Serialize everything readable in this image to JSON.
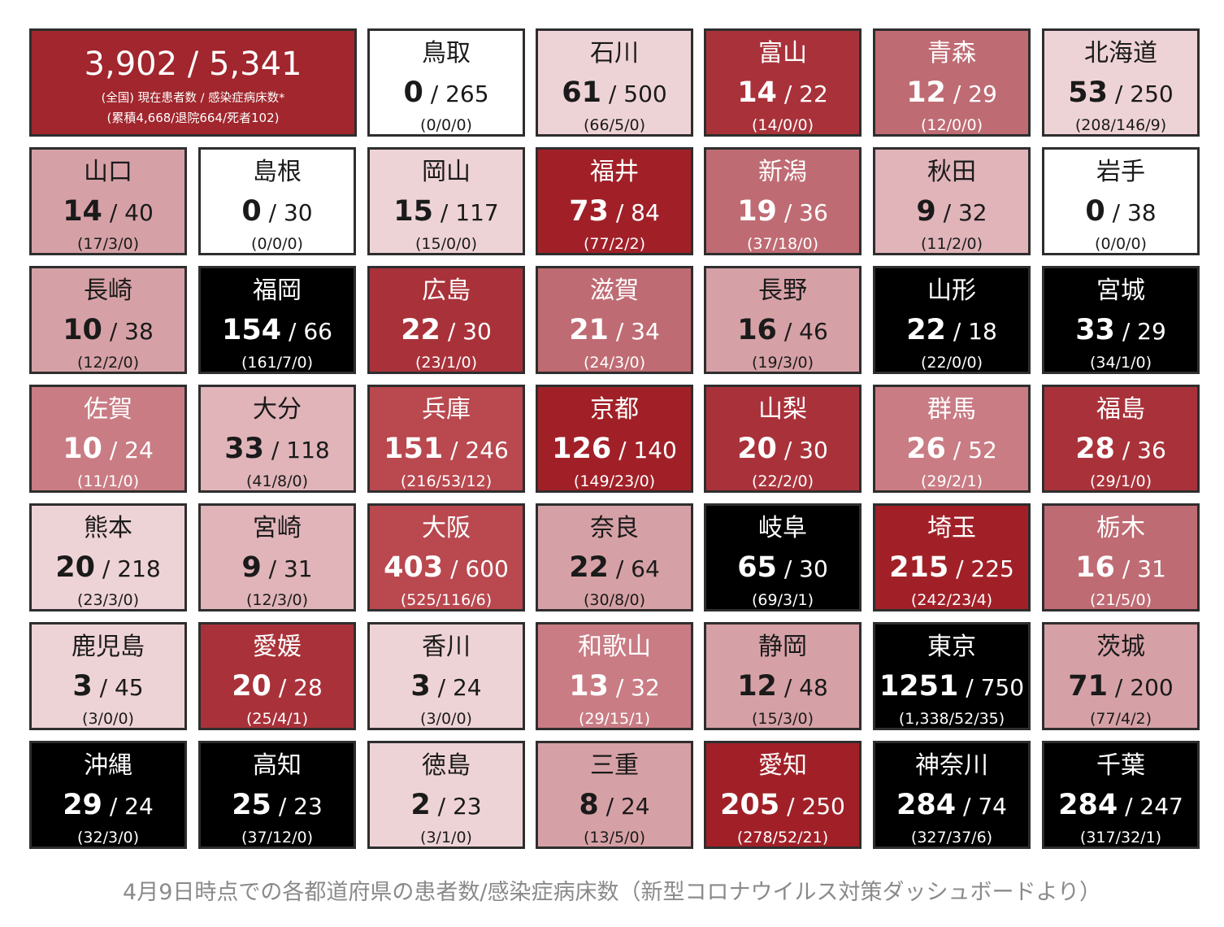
{
  "chart_data": {
    "type": "table",
    "national": {
      "headline": "3,902 / 5,341",
      "label": "(全国) 現在患者数 / 感染症病床数*",
      "cumulative": "(累積4,668/退院664/死者102)"
    },
    "tiles": [
      {
        "name": "鳥取",
        "current": 0,
        "capacity": 265,
        "breakdown": "(0/0/0)",
        "level": "white"
      },
      {
        "name": "石川",
        "current": 61,
        "capacity": 500,
        "breakdown": "(66/5/0)",
        "level": "pale"
      },
      {
        "name": "富山",
        "current": 14,
        "capacity": 22,
        "breakdown": "(14/0/0)",
        "level": "dark"
      },
      {
        "name": "青森",
        "current": 12,
        "capacity": 29,
        "breakdown": "(12/0/0)",
        "level": "mid"
      },
      {
        "name": "北海道",
        "current": 53,
        "capacity": 250,
        "breakdown": "(208/146/9)",
        "level": "pale"
      },
      {
        "name": "山口",
        "current": 14,
        "capacity": 40,
        "breakdown": "(17/3/0)",
        "level": "light"
      },
      {
        "name": "島根",
        "current": 0,
        "capacity": 30,
        "breakdown": "(0/0/0)",
        "level": "white"
      },
      {
        "name": "岡山",
        "current": 15,
        "capacity": 117,
        "breakdown": "(15/0/0)",
        "level": "pale"
      },
      {
        "name": "福井",
        "current": 73,
        "capacity": 84,
        "breakdown": "(77/2/2)",
        "level": "deep"
      },
      {
        "name": "新潟",
        "current": 19,
        "capacity": 36,
        "breakdown": "(37/18/0)",
        "level": "mid"
      },
      {
        "name": "秋田",
        "current": 9,
        "capacity": 32,
        "breakdown": "(11/2/0)",
        "level": "light2"
      },
      {
        "name": "岩手",
        "current": 0,
        "capacity": 38,
        "breakdown": "(0/0/0)",
        "level": "white"
      },
      {
        "name": "長崎",
        "current": 10,
        "capacity": 38,
        "breakdown": "(12/2/0)",
        "level": "light"
      },
      {
        "name": "福岡",
        "current": 154,
        "capacity": 66,
        "breakdown": "(161/7/0)",
        "level": "black"
      },
      {
        "name": "広島",
        "current": 22,
        "capacity": 30,
        "breakdown": "(23/1/0)",
        "level": "dark"
      },
      {
        "name": "滋賀",
        "current": 21,
        "capacity": 34,
        "breakdown": "(24/3/0)",
        "level": "mid"
      },
      {
        "name": "長野",
        "current": 16,
        "capacity": 46,
        "breakdown": "(19/3/0)",
        "level": "light"
      },
      {
        "name": "山形",
        "current": 22,
        "capacity": 18,
        "breakdown": "(22/0/0)",
        "level": "black"
      },
      {
        "name": "宮城",
        "current": 33,
        "capacity": 29,
        "breakdown": "(34/1/0)",
        "level": "black"
      },
      {
        "name": "佐賀",
        "current": 10,
        "capacity": 24,
        "breakdown": "(11/1/0)",
        "level": "mid2"
      },
      {
        "name": "大分",
        "current": 33,
        "capacity": 118,
        "breakdown": "(41/8/0)",
        "level": "light2"
      },
      {
        "name": "兵庫",
        "current": 151,
        "capacity": 246,
        "breakdown": "(216/53/12)",
        "level": "mid3"
      },
      {
        "name": "京都",
        "current": 126,
        "capacity": 140,
        "breakdown": "(149/23/0)",
        "level": "deep"
      },
      {
        "name": "山梨",
        "current": 20,
        "capacity": 30,
        "breakdown": "(22/2/0)",
        "level": "dark"
      },
      {
        "name": "群馬",
        "current": 26,
        "capacity": 52,
        "breakdown": "(29/2/1)",
        "level": "mid2"
      },
      {
        "name": "福島",
        "current": 28,
        "capacity": 36,
        "breakdown": "(29/1/0)",
        "level": "dark"
      },
      {
        "name": "熊本",
        "current": 20,
        "capacity": 218,
        "breakdown": "(23/3/0)",
        "level": "pale"
      },
      {
        "name": "宮崎",
        "current": 9,
        "capacity": 31,
        "breakdown": "(12/3/0)",
        "level": "light2"
      },
      {
        "name": "大阪",
        "current": 403,
        "capacity": 600,
        "breakdown": "(525/116/6)",
        "level": "mid3"
      },
      {
        "name": "奈良",
        "current": 22,
        "capacity": 64,
        "breakdown": "(30/8/0)",
        "level": "light"
      },
      {
        "name": "岐阜",
        "current": 65,
        "capacity": 30,
        "breakdown": "(69/3/1)",
        "level": "black"
      },
      {
        "name": "埼玉",
        "current": 215,
        "capacity": 225,
        "breakdown": "(242/23/4)",
        "level": "deep"
      },
      {
        "name": "栃木",
        "current": 16,
        "capacity": 31,
        "breakdown": "(21/5/0)",
        "level": "mid"
      },
      {
        "name": "鹿児島",
        "current": 3,
        "capacity": 45,
        "breakdown": "(3/0/0)",
        "level": "pale"
      },
      {
        "name": "愛媛",
        "current": 20,
        "capacity": 28,
        "breakdown": "(25/4/1)",
        "level": "dark"
      },
      {
        "name": "香川",
        "current": 3,
        "capacity": 24,
        "breakdown": "(3/0/0)",
        "level": "pale"
      },
      {
        "name": "和歌山",
        "current": 13,
        "capacity": 32,
        "breakdown": "(29/15/1)",
        "level": "mid2"
      },
      {
        "name": "静岡",
        "current": 12,
        "capacity": 48,
        "breakdown": "(15/3/0)",
        "level": "light"
      },
      {
        "name": "東京",
        "current": 1251,
        "capacity": 750,
        "breakdown": "(1,338/52/35)",
        "level": "black"
      },
      {
        "name": "茨城",
        "current": 71,
        "capacity": 200,
        "breakdown": "(77/4/2)",
        "level": "light"
      },
      {
        "name": "沖縄",
        "current": 29,
        "capacity": 24,
        "breakdown": "(32/3/0)",
        "level": "black"
      },
      {
        "name": "高知",
        "current": 25,
        "capacity": 23,
        "breakdown": "(37/12/0)",
        "level": "black"
      },
      {
        "name": "徳島",
        "current": 2,
        "capacity": 23,
        "breakdown": "(3/1/0)",
        "level": "pale"
      },
      {
        "name": "三重",
        "current": 8,
        "capacity": 24,
        "breakdown": "(13/5/0)",
        "level": "light"
      },
      {
        "name": "愛知",
        "current": 205,
        "capacity": 250,
        "breakdown": "(278/52/21)",
        "level": "deep"
      },
      {
        "name": "神奈川",
        "current": 284,
        "capacity": 74,
        "breakdown": "(327/37/6)",
        "level": "black"
      },
      {
        "name": "千葉",
        "current": 284,
        "capacity": 247,
        "breakdown": "(317/32/1)",
        "level": "black"
      }
    ],
    "colors": {
      "white": "#ffffff",
      "pale": "#eed3d6",
      "light": "#d6a1a6",
      "light2": "#e0b4b9",
      "mid": "#bf6b73",
      "mid2": "#c97c84",
      "mid3": "#b9484f",
      "dark": "#a9323a",
      "deep": "#a12028",
      "black": "#000000",
      "national": "#a1262d"
    }
  },
  "caption": "4月9日時点での各都道府県の患者数/感染症病床数（新型コロナウイルス対策ダッシュボードより）"
}
